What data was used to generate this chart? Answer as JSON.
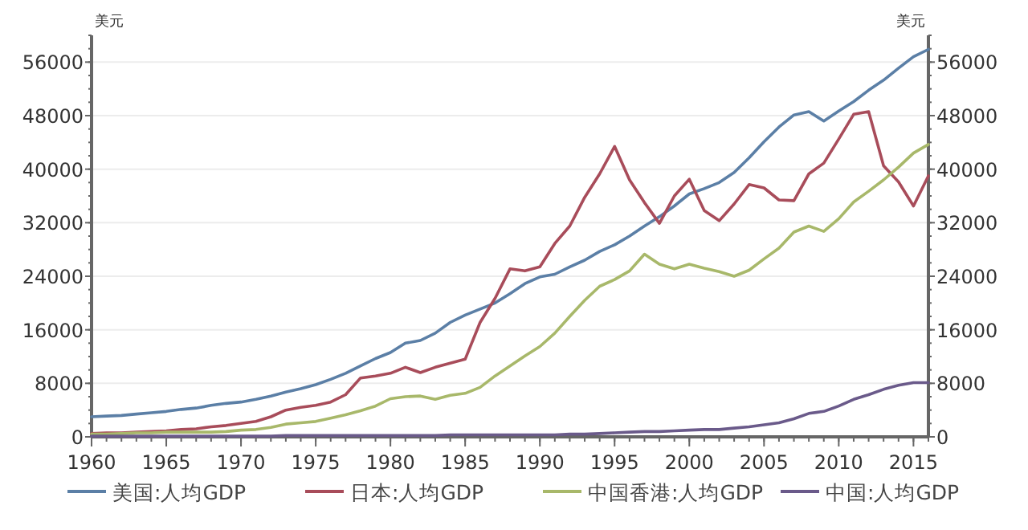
{
  "chart_data": {
    "type": "line",
    "ylabel": "美元",
    "y2label": "美元",
    "x": [
      1960,
      1961,
      1962,
      1963,
      1964,
      1965,
      1966,
      1967,
      1968,
      1969,
      1970,
      1971,
      1972,
      1973,
      1974,
      1975,
      1976,
      1977,
      1978,
      1979,
      1980,
      1981,
      1982,
      1983,
      1984,
      1985,
      1986,
      1987,
      1988,
      1989,
      1990,
      1991,
      1992,
      1993,
      1994,
      1995,
      1996,
      1997,
      1998,
      1999,
      2000,
      2001,
      2002,
      2003,
      2004,
      2005,
      2006,
      2007,
      2008,
      2009,
      2010,
      2011,
      2012,
      2013,
      2014,
      2015,
      2016
    ],
    "xlim": [
      1960,
      2016
    ],
    "xticks": [
      1960,
      1965,
      1970,
      1975,
      1980,
      1985,
      1990,
      1995,
      2000,
      2005,
      2010,
      2015
    ],
    "ylim": [
      0,
      60000
    ],
    "yticks": [
      0,
      8000,
      16000,
      24000,
      32000,
      40000,
      48000,
      56000
    ],
    "y2lim": [
      0,
      60000
    ],
    "y2ticks": [
      0,
      8000,
      16000,
      24000,
      32000,
      40000,
      48000,
      56000
    ],
    "grid": "y",
    "legend": "bottom",
    "marker": "none",
    "line_style": "solid",
    "series": [
      {
        "name": "美国:人均GDP",
        "color": "#5b7fa6",
        "values": [
          3000,
          3100,
          3200,
          3400,
          3600,
          3800,
          4100,
          4300,
          4700,
          5000,
          5200,
          5600,
          6100,
          6700,
          7200,
          7800,
          8600,
          9500,
          10600,
          11700,
          12600,
          14000,
          14400,
          15500,
          17100,
          18200,
          19100,
          20000,
          21400,
          22900,
          23900,
          24300,
          25400,
          26400,
          27700,
          28700,
          30000,
          31500,
          32900,
          34500,
          36300,
          37100,
          38000,
          39500,
          41700,
          44100,
          46300,
          48100,
          48600,
          47200,
          48700,
          50100,
          51800,
          53300,
          55100,
          56800,
          57900
        ]
      },
      {
        "name": "日本:人均GDP",
        "color": "#a84c5a",
        "values": [
          500,
          600,
          600,
          700,
          800,
          900,
          1100,
          1200,
          1500,
          1700,
          2000,
          2300,
          3000,
          4000,
          4400,
          4700,
          5200,
          6300,
          8800,
          9100,
          9500,
          10400,
          9600,
          10400,
          11000,
          11600,
          17100,
          20700,
          25100,
          24800,
          25400,
          28900,
          31500,
          35800,
          39300,
          43400,
          38400,
          35000,
          31900,
          36000,
          38500,
          33800,
          32300,
          34800,
          37700,
          37200,
          35400,
          35300,
          39300,
          40900,
          44500,
          48200,
          48600,
          40500,
          38100,
          34500,
          39000
        ]
      },
      {
        "name": "中国香港:人均GDP",
        "color": "#a8b86a",
        "values": [
          400,
          400,
          500,
          600,
          600,
          700,
          700,
          700,
          700,
          800,
          1000,
          1100,
          1400,
          1900,
          2100,
          2300,
          2800,
          3300,
          3900,
          4600,
          5700,
          6000,
          6100,
          5600,
          6200,
          6500,
          7400,
          9100,
          10600,
          12100,
          13500,
          15500,
          18000,
          20400,
          22500,
          23500,
          24800,
          27300,
          25800,
          25100,
          25800,
          25200,
          24700,
          24000,
          24900,
          26600,
          28200,
          30600,
          31500,
          30700,
          32600,
          35100,
          36700,
          38400,
          40300,
          42400,
          43700
        ]
      },
      {
        "name": "中国:人均GDP",
        "color": "#6a5a8a",
        "values": [
          100,
          100,
          100,
          100,
          100,
          100,
          100,
          100,
          100,
          100,
          100,
          100,
          100,
          200,
          200,
          200,
          200,
          200,
          200,
          200,
          200,
          200,
          200,
          200,
          300,
          300,
          300,
          300,
          300,
          300,
          300,
          300,
          400,
          400,
          500,
          600,
          700,
          800,
          800,
          900,
          1000,
          1100,
          1100,
          1300,
          1500,
          1800,
          2100,
          2700,
          3500,
          3800,
          4600,
          5600,
          6300,
          7100,
          7700,
          8100,
          8100
        ]
      }
    ]
  }
}
